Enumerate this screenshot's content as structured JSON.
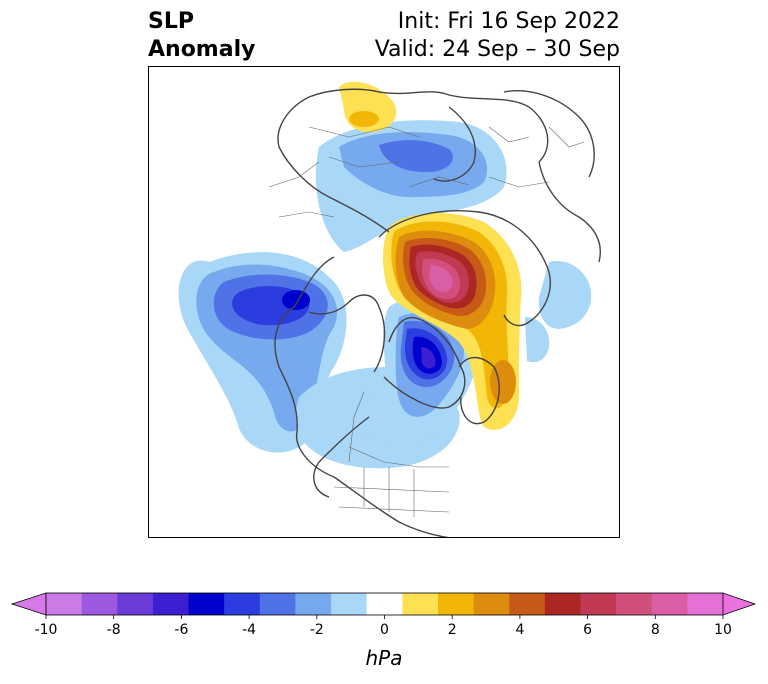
{
  "title": {
    "left_line1": "SLP",
    "left_line2": "Anomaly",
    "right_line1": "Init: Fri 16 Sep 2022",
    "right_line2": "Valid: 24 Sep – 30 Sep"
  },
  "colorbar": {
    "unit_label": "hPa",
    "tick_labels": [
      "-10",
      "-8",
      "-6",
      "-4",
      "-2",
      "0",
      "2",
      "4",
      "6",
      "8",
      "10"
    ],
    "bin_colors": [
      "#cc7ae6",
      "#9d58e0",
      "#6c3cd9",
      "#3b1fd0",
      "#0000cf",
      "#2c3de0",
      "#4f72e6",
      "#76a9ee",
      "#a9d7f8",
      "#ffffff",
      "#fde153",
      "#f2b606",
      "#dd8c0e",
      "#c75a16",
      "#ac2623",
      "#c03a54",
      "#d24f7c",
      "#d95ea6",
      "#e470d8"
    ],
    "min_extend_color": "#d77ae9",
    "max_extend_color": "#ea72df"
  },
  "map": {
    "projection": "polar-stereographic",
    "region": "Northern Hemisphere",
    "variable": "sea-level-pressure anomaly",
    "features": [
      {
        "name": "low-north-pacific",
        "anomaly_hpa": -6
      },
      {
        "name": "low-greenland-canada",
        "anomaly_hpa": -7
      },
      {
        "name": "low-siberia",
        "anomaly_hpa": -3
      },
      {
        "name": "high-kara-siberia",
        "anomaly_hpa": 9
      },
      {
        "name": "high-north-atlantic",
        "anomaly_hpa": 5
      },
      {
        "name": "high-east-europe",
        "anomaly_hpa": 2
      }
    ]
  }
}
